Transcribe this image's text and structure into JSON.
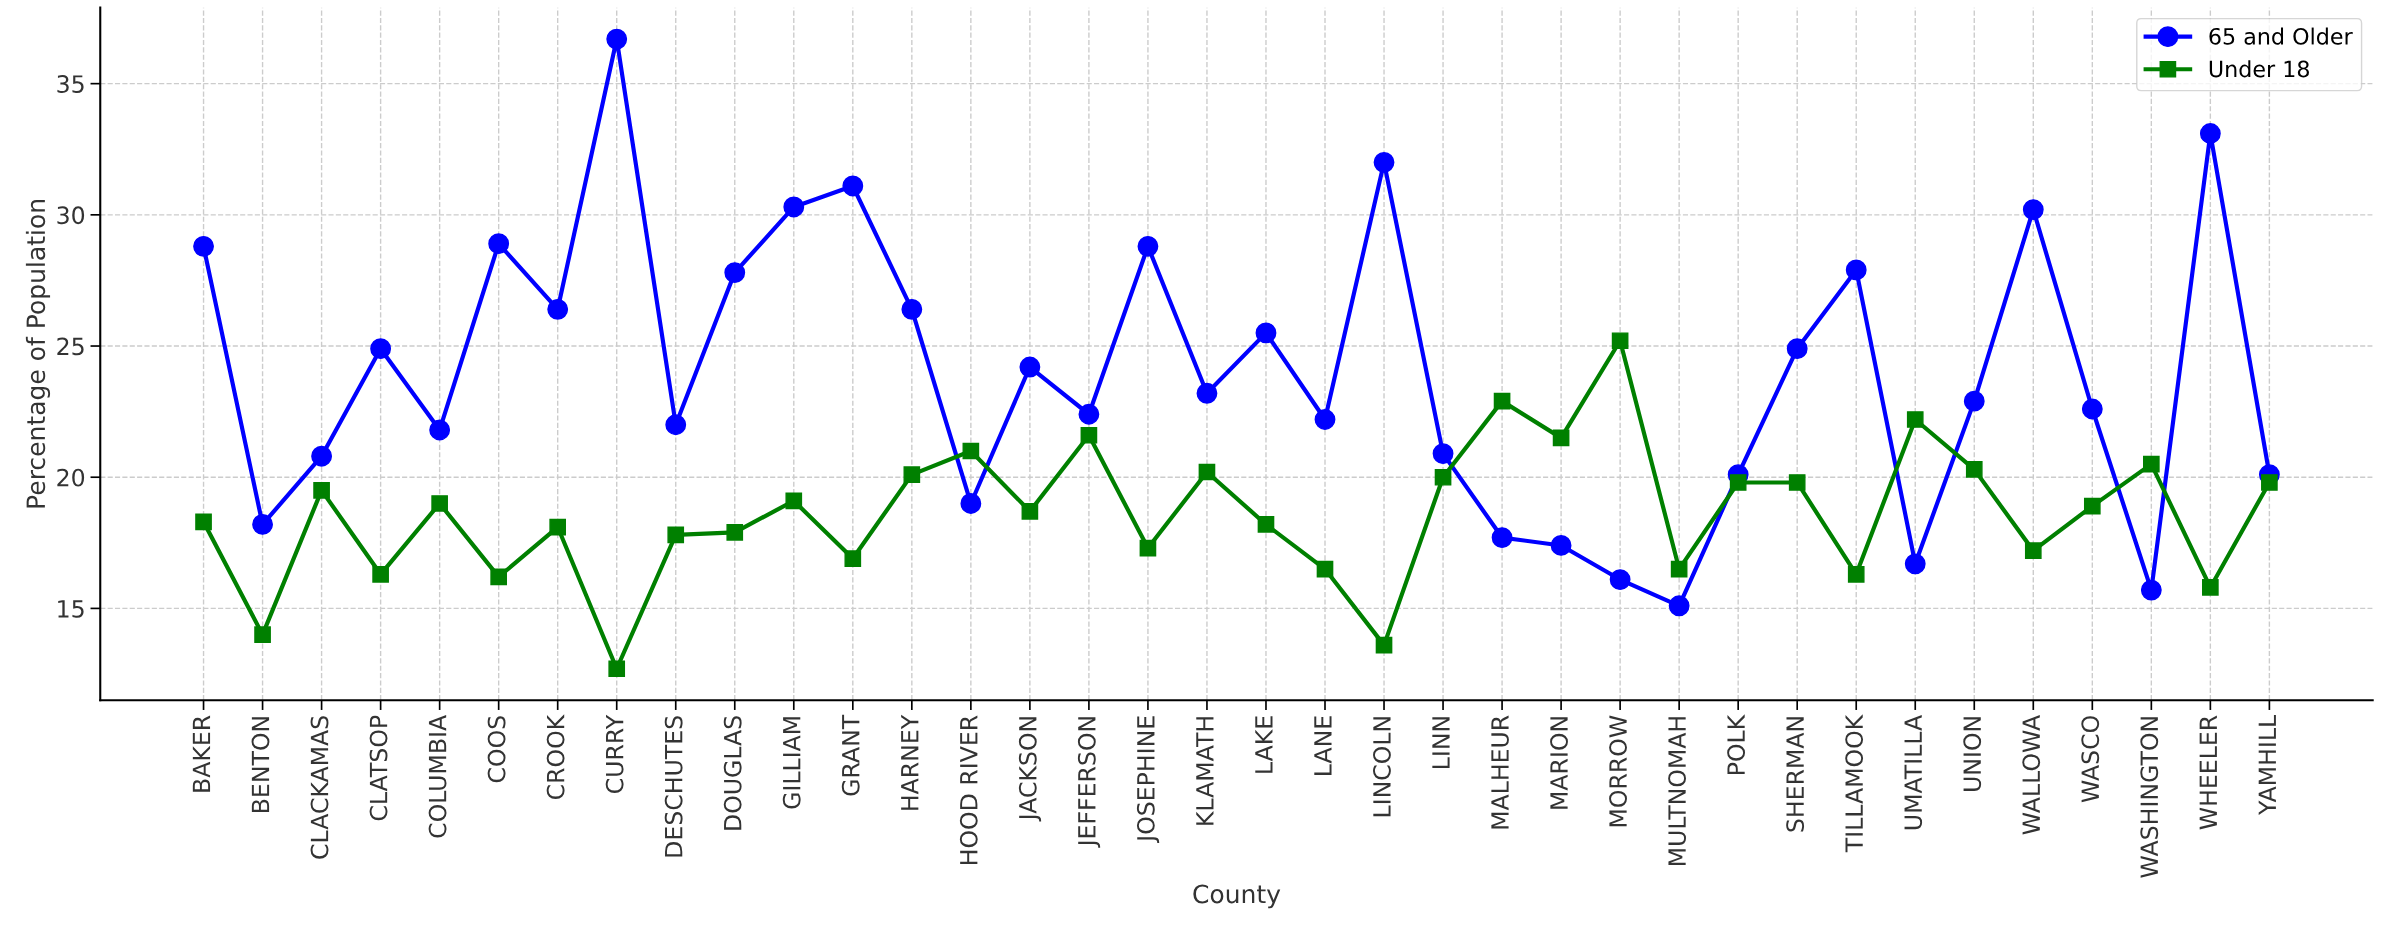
{
  "chart_data": {
    "type": "line",
    "xlabel": "County",
    "ylabel": "Percentage of Population",
    "categories": [
      "BAKER",
      "BENTON",
      "CLACKAMAS",
      "CLATSOP",
      "COLUMBIA",
      "COOS",
      "CROOK",
      "CURRY",
      "DESCHUTES",
      "DOUGLAS",
      "GILLIAM",
      "GRANT",
      "HARNEY",
      "HOOD RIVER",
      "JACKSON",
      "JEFFERSON",
      "JOSEPHINE",
      "KLAMATH",
      "LAKE",
      "LANE",
      "LINCOLN",
      "LINN",
      "MALHEUR",
      "MARION",
      "MORROW",
      "MULTNOMAH",
      "POLK",
      "SHERMAN",
      "TILLAMOOK",
      "UMATILLA",
      "UNION",
      "WALLOWA",
      "WASCO",
      "WASHINGTON",
      "WHEELER",
      "YAMHILL"
    ],
    "series": [
      {
        "name": "65 and Older",
        "color": "#0000ff",
        "marker": "circle",
        "values": [
          28.8,
          18.2,
          20.8,
          24.9,
          21.8,
          28.9,
          26.4,
          36.7,
          22.0,
          27.8,
          30.3,
          31.1,
          26.4,
          19.0,
          24.2,
          22.4,
          28.8,
          23.2,
          25.5,
          22.2,
          32.0,
          20.9,
          17.7,
          17.4,
          16.1,
          15.1,
          20.1,
          24.9,
          27.9,
          16.7,
          22.9,
          30.2,
          22.6,
          15.7,
          33.1,
          20.1
        ]
      },
      {
        "name": "Under 18",
        "color": "#008000",
        "marker": "square",
        "values": [
          18.3,
          14.0,
          19.5,
          16.3,
          19.0,
          16.2,
          18.1,
          12.7,
          17.8,
          17.9,
          19.1,
          16.9,
          20.1,
          21.0,
          18.7,
          21.6,
          17.3,
          20.2,
          18.2,
          16.5,
          13.6,
          20.0,
          22.9,
          21.5,
          25.2,
          16.5,
          19.8,
          19.8,
          16.3,
          22.2,
          20.3,
          17.2,
          18.9,
          20.5,
          15.8,
          19.8
        ]
      }
    ],
    "ylim": [
      11.5,
      37.9
    ],
    "yticks": [
      15,
      20,
      25,
      30,
      35
    ],
    "grid": true,
    "legend": "top right",
    "line_style": "solid"
  }
}
